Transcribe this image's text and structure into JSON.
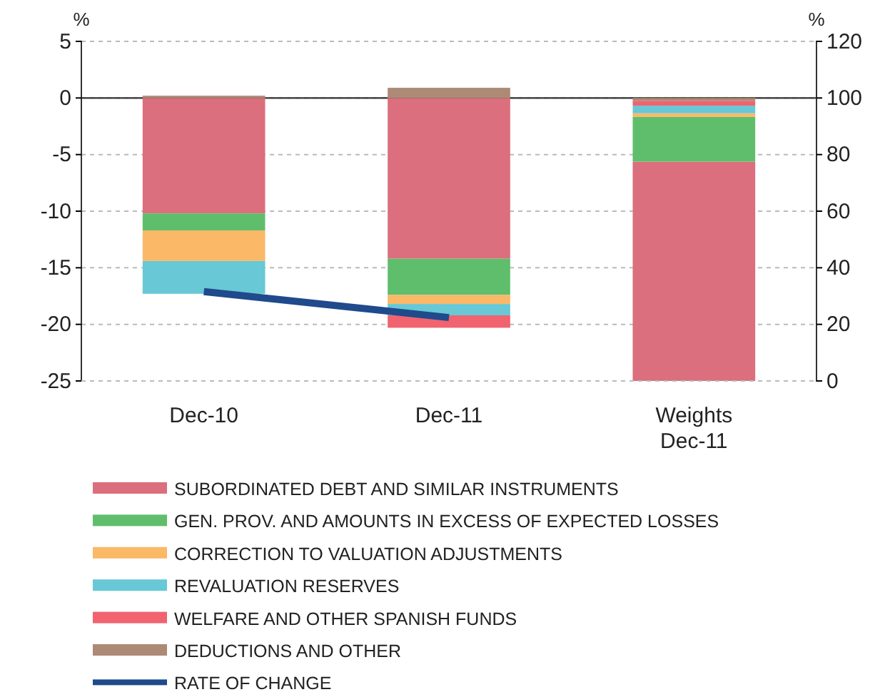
{
  "chart_data": {
    "type": "bar",
    "stacked": true,
    "categories": [
      "Dec-10",
      "Dec-11",
      "Weights Dec-11"
    ],
    "ylabel": "%",
    "y2label": "%",
    "ylim": [
      -25,
      5
    ],
    "yticks": [
      -25,
      -20,
      -15,
      -10,
      -5,
      0,
      5
    ],
    "y2lim": [
      0,
      120
    ],
    "y2ticks": [
      0,
      20,
      40,
      60,
      80,
      100,
      120
    ],
    "grid": "y",
    "legend": "bottom",
    "series": [
      {
        "name": "SUBORDINATED DEBT AND SIMILAR INSTRUMENTS",
        "color": "#db6f7d",
        "values": [
          -10.2,
          -14.2,
          null
        ]
      },
      {
        "name": "GEN. PROV. AND AMOUNTS IN EXCESS OF EXPECTED LOSSES",
        "color": "#5fbe6b",
        "values": [
          -1.5,
          -3.2,
          null
        ]
      },
      {
        "name": "CORRECTION TO VALUATION ADJUSTMENTS",
        "color": "#fbb866",
        "values": [
          -2.7,
          -0.8,
          null
        ]
      },
      {
        "name": "REVALUATION RESERVES",
        "color": "#68c8d5",
        "values": [
          -2.9,
          -1.0,
          null
        ]
      },
      {
        "name": "WELFARE AND OTHER SPANISH FUNDS",
        "color": "#f0636f",
        "values": [
          null,
          -1.1,
          null
        ]
      },
      {
        "name": "DEDUCTIONS AND OTHER",
        "color": "#ad8a76",
        "values": [
          0.2,
          0.9,
          null
        ]
      },
      {
        "name": "RATE OF CHANGE",
        "type": "line",
        "color": "#1f4a8c",
        "values": [
          -17.1,
          -19.4,
          null
        ]
      },
      {
        "color": "#db6f7d",
        "axis": "y2",
        "values": [
          null,
          null,
          77.5
        ]
      },
      {
        "color": "#5fbe6b",
        "axis": "y2",
        "values": [
          null,
          null,
          15.8
        ]
      },
      {
        "color": "#fbb866",
        "axis": "y2",
        "values": [
          null,
          null,
          1.3
        ]
      },
      {
        "color": "#68c8d5",
        "axis": "y2",
        "values": [
          null,
          null,
          2.7
        ]
      },
      {
        "color": "#f0636f",
        "axis": "y2",
        "values": [
          null,
          null,
          1.7
        ]
      },
      {
        "color": "#ad8a76",
        "axis": "y2",
        "values": [
          null,
          null,
          1.0
        ]
      }
    ]
  }
}
